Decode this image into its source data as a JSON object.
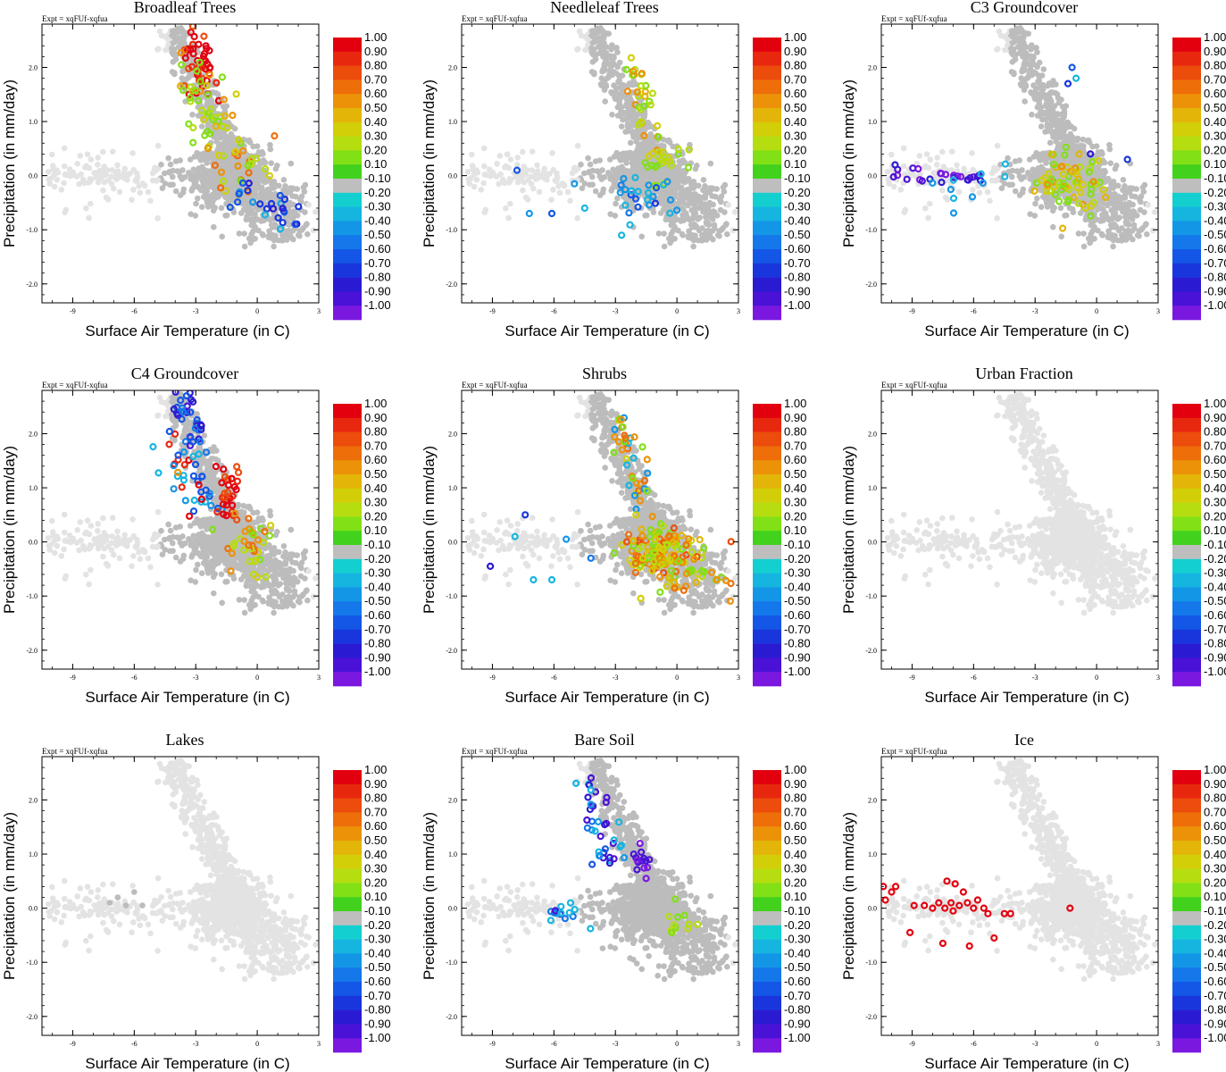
{
  "figure": {
    "expt_label": "Expt = xqFUf-xqfua",
    "xlabel": "Surface Air Temperature (in C)",
    "ylabel": "Precipitation (in mm/day)",
    "xlim": [
      -10.5,
      3
    ],
    "ylim": [
      -2.35,
      2.8
    ],
    "xticks": [
      "-9",
      "-6",
      "-3",
      "0",
      "3"
    ],
    "xtick_values": [
      -9,
      -6,
      -3,
      0,
      3
    ],
    "yticks": [
      "2.0",
      "1.0",
      "0.0",
      "-1.0",
      "-2.0"
    ],
    "ytick_values": [
      2,
      1,
      0,
      -1,
      -2
    ],
    "colorbar_labels": [
      "1.00",
      "0.90",
      "0.80",
      "0.70",
      "0.60",
      "0.50",
      "0.40",
      "0.30",
      "0.20",
      "0.10",
      "-0.10",
      "-0.20",
      "-0.30",
      "-0.40",
      "-0.50",
      "-0.60",
      "-0.70",
      "-0.80",
      "-0.90",
      "-1.00"
    ],
    "colorbar_colors": [
      "#e2000f",
      "#e8280e",
      "#ec4c0c",
      "#ee6e0a",
      "#ec9208",
      "#e2b508",
      "#d2cf08",
      "#b5dd10",
      "#82e016",
      "#42d21e",
      "#bebebe",
      "#13cfd0",
      "#16b5e0",
      "#1496e6",
      "#1477ea",
      "#1456e6",
      "#1936dc",
      "#2a1bd2",
      "#4a12d6",
      "#7a18e0"
    ],
    "colors": {
      "background_points": "#e3e3e3",
      "neutral_points": "#bcbcbc"
    }
  },
  "panels": [
    {
      "title": "Broadleaf Trees",
      "pattern": "broadleaf"
    },
    {
      "title": "Needleleaf Trees",
      "pattern": "needleleaf"
    },
    {
      "title": "C3 Groundcover",
      "pattern": "c3"
    },
    {
      "title": "C4 Groundcover",
      "pattern": "c4"
    },
    {
      "title": "Shrubs",
      "pattern": "shrubs"
    },
    {
      "title": "Urban Fraction",
      "pattern": "none"
    },
    {
      "title": "Lakes",
      "pattern": "lakes"
    },
    {
      "title": "Bare Soil",
      "pattern": "baresoil"
    },
    {
      "title": "Ice",
      "pattern": "ice"
    }
  ],
  "chart_data": {
    "type": "scatter",
    "description_series": [
      {
        "name": "all grid points (gray)",
        "x_range": [
          -10.5,
          3
        ],
        "y_range": [
          -1.5,
          2.8
        ]
      },
      {
        "name": "colored correlation points",
        "color_range": [
          -1.0,
          1.0
        ]
      }
    ],
    "ice_points": [
      {
        "x": -10.4,
        "y": 0.4,
        "c": 1.0
      },
      {
        "x": -10.0,
        "y": 0.3,
        "c": 1.0
      },
      {
        "x": -9.8,
        "y": 0.4,
        "c": 1.0
      },
      {
        "x": -10.3,
        "y": 0.15,
        "c": 1.0
      },
      {
        "x": -9.1,
        "y": -0.45,
        "c": 1.0
      },
      {
        "x": -8.9,
        "y": 0.05,
        "c": 1.0
      },
      {
        "x": -8.4,
        "y": 0.05,
        "c": 1.0
      },
      {
        "x": -8.0,
        "y": 0.0,
        "c": 1.0
      },
      {
        "x": -7.7,
        "y": 0.1,
        "c": 1.0
      },
      {
        "x": -7.4,
        "y": 0.0,
        "c": 1.0
      },
      {
        "x": -7.3,
        "y": 0.5,
        "c": 1.0
      },
      {
        "x": -7.1,
        "y": 0.1,
        "c": 1.0
      },
      {
        "x": -6.9,
        "y": 0.45,
        "c": 1.0
      },
      {
        "x": -6.7,
        "y": 0.05,
        "c": 1.0
      },
      {
        "x": -6.5,
        "y": 0.3,
        "c": 1.0
      },
      {
        "x": -6.3,
        "y": 0.1,
        "c": 1.0
      },
      {
        "x": -6.2,
        "y": -0.7,
        "c": 1.0
      },
      {
        "x": -6.0,
        "y": 0.0,
        "c": 1.0
      },
      {
        "x": -5.8,
        "y": 0.15,
        "c": 1.0
      },
      {
        "x": -5.5,
        "y": 0.0,
        "c": 1.0
      },
      {
        "x": -5.3,
        "y": -0.1,
        "c": 1.0
      },
      {
        "x": -5.0,
        "y": -0.55,
        "c": 1.0
      },
      {
        "x": -4.5,
        "y": -0.1,
        "c": 1.0
      },
      {
        "x": -4.2,
        "y": -0.1,
        "c": 1.0
      },
      {
        "x": -1.3,
        "y": 0.0,
        "c": 1.0
      },
      {
        "x": -7.5,
        "y": -0.65,
        "c": 1.0
      },
      {
        "x": -7.0,
        "y": -0.05,
        "c": 1.0
      }
    ]
  }
}
